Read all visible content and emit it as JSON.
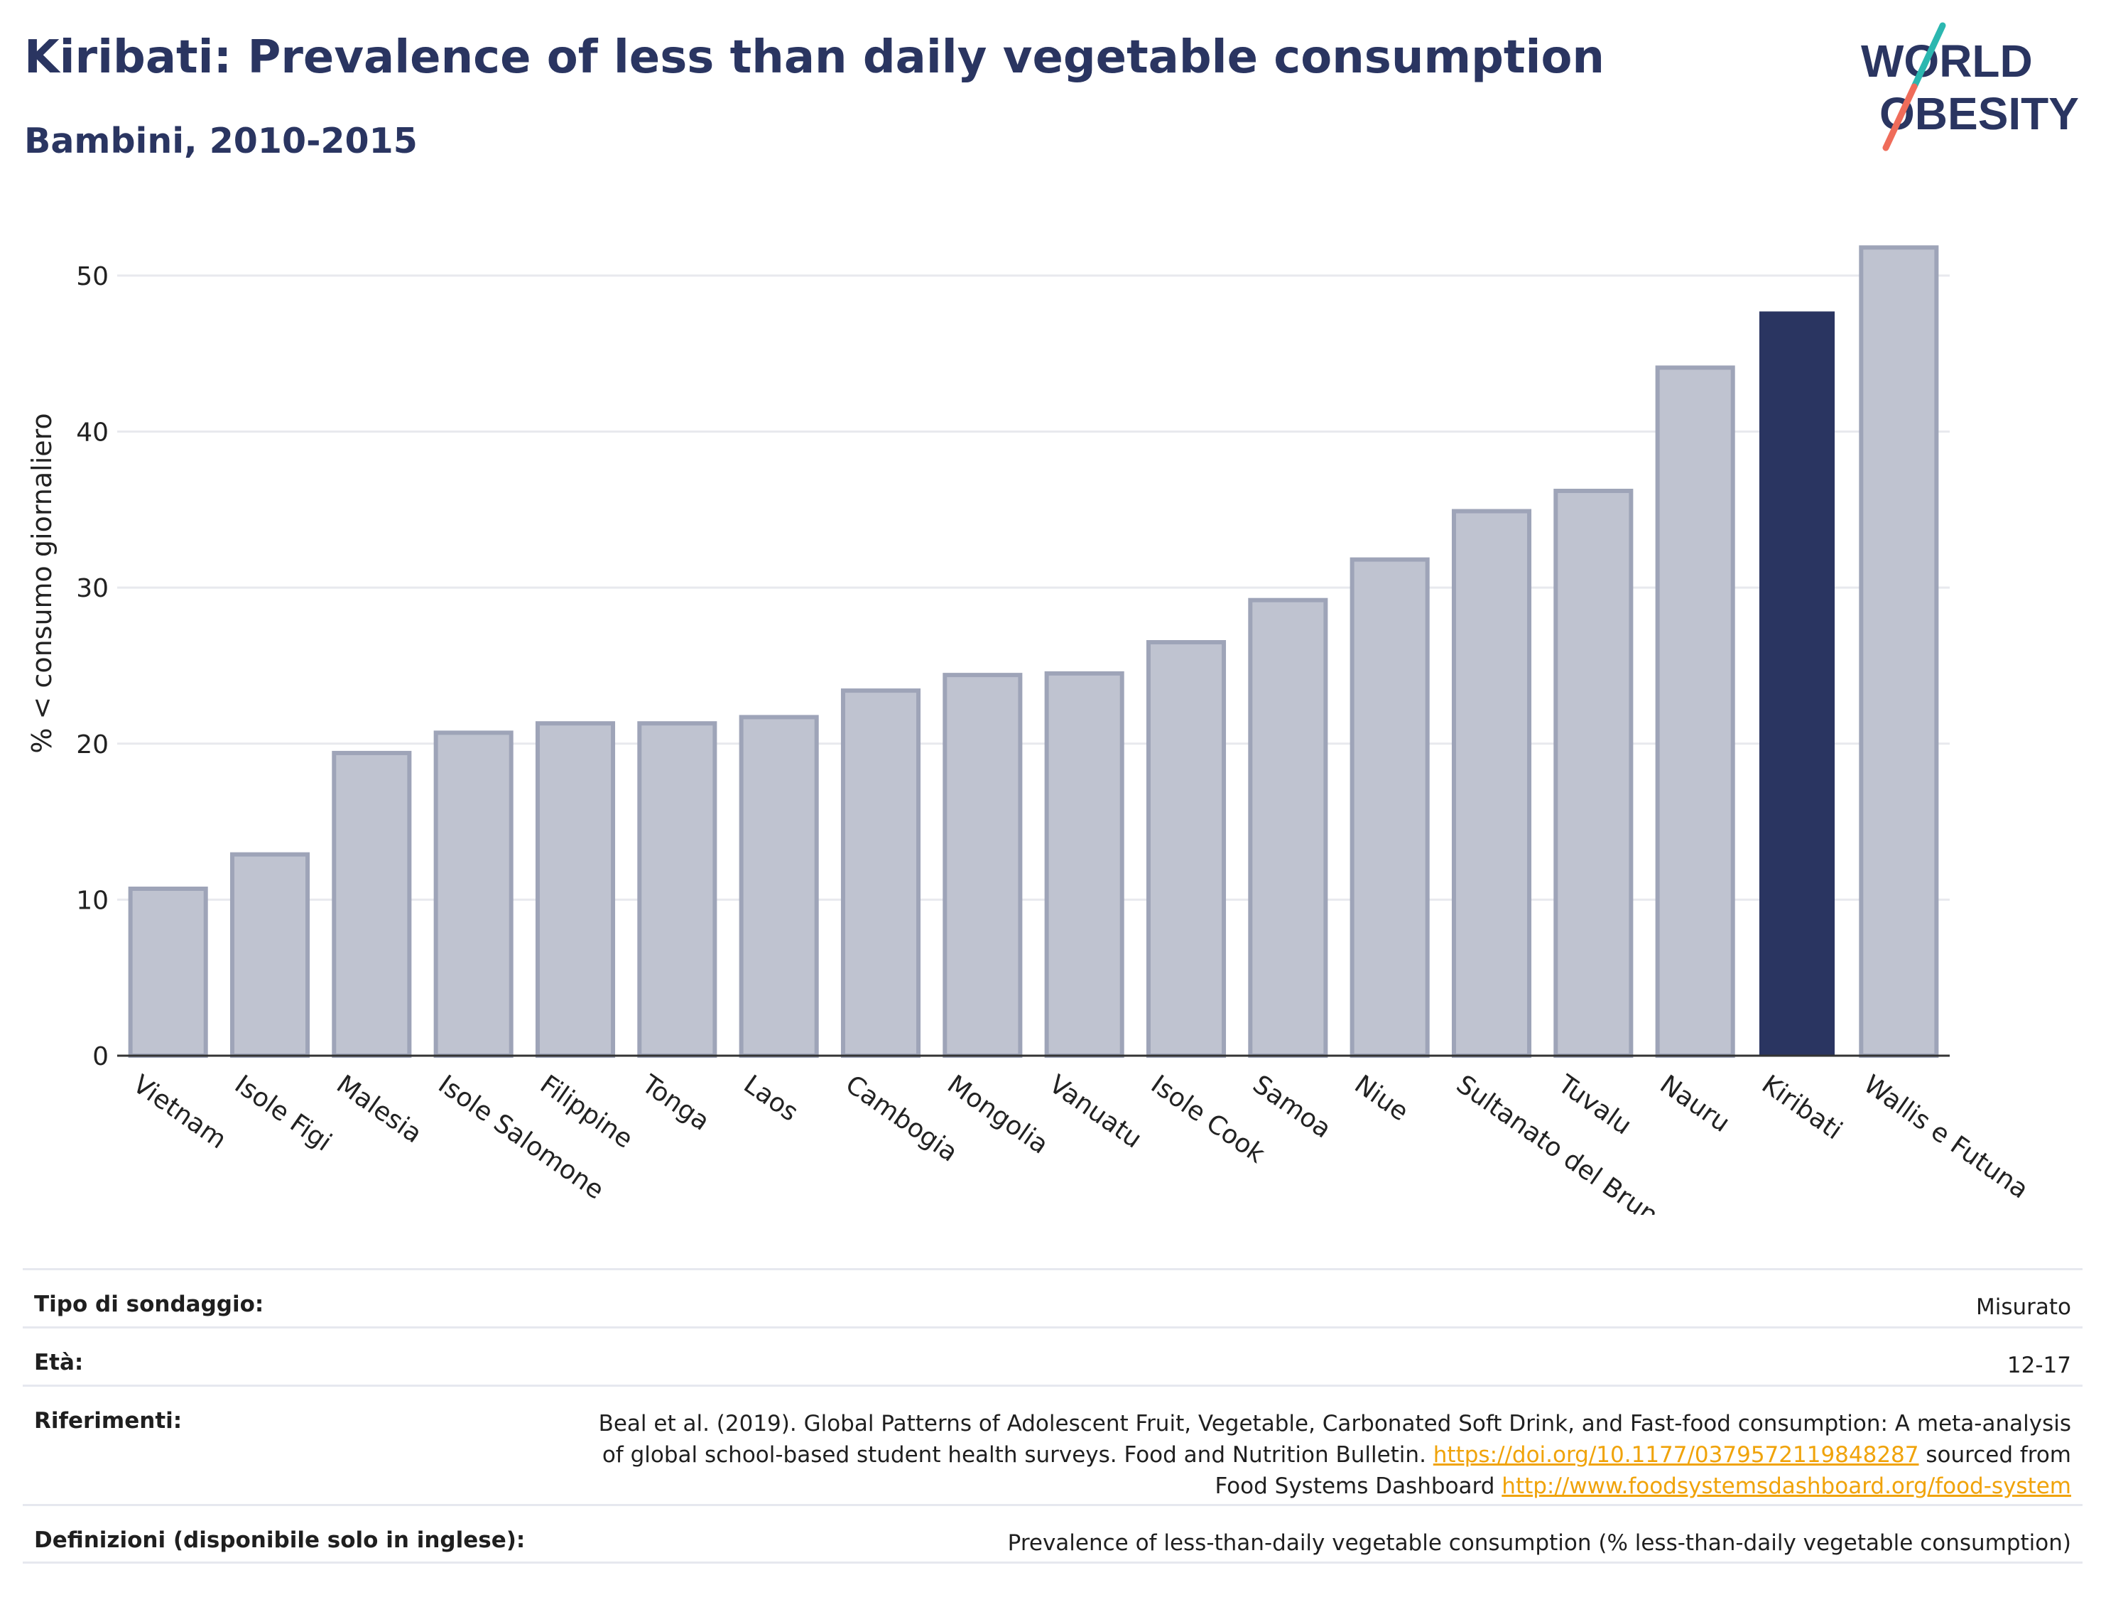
{
  "header": {
    "title": "Kiribati: Prevalence of less than daily vegetable consumption",
    "subtitle": "Bambini, 2010-2015"
  },
  "logo": {
    "line1": "WORLD",
    "line2": "OBESITY",
    "text_color": "#2a3561",
    "slash_colors": [
      "#2bb7b0",
      "#ef6c5a"
    ]
  },
  "chart_data": {
    "type": "bar",
    "title": "Kiribati: Prevalence of less than daily vegetable consumption",
    "subtitle": "Bambini, 2010-2015",
    "ylabel": "% < consumo giornaliero",
    "xlabel": "",
    "ylim": [
      0,
      53
    ],
    "yticks": [
      0,
      10,
      20,
      30,
      40,
      50
    ],
    "grid": true,
    "categories": [
      "Vietnam",
      "Isole Figi",
      "Malesia",
      "Isole Salomone",
      "Filippine",
      "Tonga",
      "Laos",
      "Cambogia",
      "Mongolia",
      "Vanuatu",
      "Isole Cook",
      "Samoa",
      "Niue",
      "Sultanato del Brunei",
      "Tuvalu",
      "Nauru",
      "Kiribati",
      "Wallis e Futuna"
    ],
    "values": [
      10.7,
      12.9,
      19.4,
      20.7,
      21.3,
      21.3,
      21.7,
      23.4,
      24.4,
      24.5,
      26.5,
      29.2,
      31.8,
      34.9,
      36.2,
      44.1,
      47.7,
      51.8
    ],
    "highlight": "Kiribati",
    "colors": {
      "bar_fill": "#bfc3d0",
      "bar_stroke": "#9ea4b8",
      "highlight": "#2a3561",
      "grid": "#e8e9ee",
      "axis": "#333333"
    }
  },
  "info": {
    "survey_type": {
      "label": "Tipo di sondaggio:",
      "value": "Misurato"
    },
    "age": {
      "label": "Età:",
      "value": "12-17"
    },
    "references": {
      "label": "Riferimenti:",
      "text1": "Beal et al. (2019). Global Patterns of Adolescent Fruit, Vegetable, Carbonated Soft Drink, and Fast-food consumption: A meta-analysis",
      "text2": "of global school-based student health surveys. Food and Nutrition Bulletin.",
      "link1": "https://doi.org/10.1177/0379572119848287",
      "text3": "sourced from",
      "text4": "Food Systems Dashboard",
      "link2": "http://www.foodsystemsdashboard.org/food-system"
    },
    "definitions": {
      "label": "Definizioni (disponibile solo in inglese):",
      "value": "Prevalence of less-than-daily vegetable consumption (% less-than-daily vegetable consumption)"
    }
  }
}
